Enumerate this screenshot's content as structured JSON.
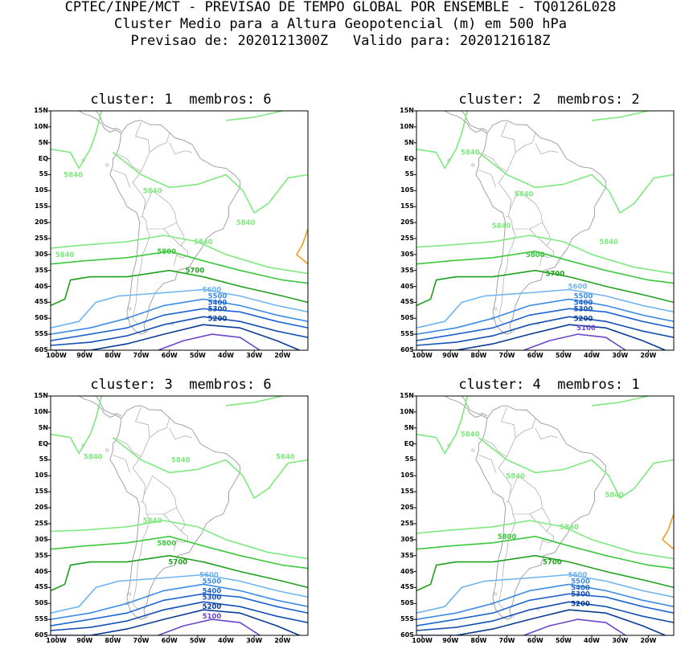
{
  "header": {
    "line1": "CPTEC/INPE/MCT - PREVISAO DE TEMPO GLOBAL POR ENSEMBLE - TQ0126L028",
    "line2": "Cluster Medio para a Altura Geopotencial (m) em 500 hPa",
    "line3": "Previsao de: 2020121300Z   Valido para: 2020121618Z"
  },
  "lat_ticks": [
    "15N",
    "10N",
    "5N",
    "EQ",
    "5S",
    "10S",
    "15S",
    "20S",
    "25S",
    "30S",
    "35S",
    "40S",
    "45S",
    "50S",
    "55S",
    "60S"
  ],
  "lon_ticks": [
    "100W",
    "90W",
    "80W",
    "70W",
    "60W",
    "50W",
    "40W",
    "30W",
    "20W"
  ],
  "colors": {
    "c5840": "#7fe87f",
    "c5800": "#3cc83c",
    "c5700": "#1ea01e",
    "c5600": "#6eb4f0",
    "c5500": "#3c8ce6",
    "c5400": "#1e64d2",
    "c5300": "#1450b4",
    "c5200": "#0a3c96",
    "c5100": "#6a46c8",
    "c5900": "#f0a01e",
    "coast": "#999999"
  },
  "panels": [
    {
      "title": "cluster: 1  membros: 6",
      "labels": [
        {
          "text": "5840",
          "lon": -94,
          "lat": -5,
          "color": "c5840"
        },
        {
          "text": "5840",
          "lon": -66,
          "lat": -10,
          "color": "c5840"
        },
        {
          "text": "5840",
          "lon": -33,
          "lat": -20,
          "color": "c5840"
        },
        {
          "text": "5840",
          "lon": -97,
          "lat": -30,
          "color": "c5840"
        },
        {
          "text": "5840",
          "lon": -48,
          "lat": -26,
          "color": "c5840"
        },
        {
          "text": "5800",
          "lon": -61,
          "lat": -29,
          "color": "c5800"
        },
        {
          "text": "5700",
          "lon": -51,
          "lat": -35,
          "color": "c5700"
        },
        {
          "text": "5600",
          "lon": -45,
          "lat": -41,
          "color": "c5600"
        },
        {
          "text": "5500",
          "lon": -43,
          "lat": -43,
          "color": "c5500"
        },
        {
          "text": "5400",
          "lon": -43,
          "lat": -45,
          "color": "c5400"
        },
        {
          "text": "5300",
          "lon": -43,
          "lat": -47,
          "color": "c5300"
        },
        {
          "text": "5200",
          "lon": -43,
          "lat": -50,
          "color": "c5200"
        }
      ]
    },
    {
      "title": "cluster: 2  membros: 2",
      "labels": [
        {
          "text": "5840",
          "lon": -83,
          "lat": 2,
          "color": "c5840"
        },
        {
          "text": "5840",
          "lon": -64,
          "lat": -11,
          "color": "c5840"
        },
        {
          "text": "5840",
          "lon": -72,
          "lat": -21,
          "color": "c5840"
        },
        {
          "text": "5840",
          "lon": -34,
          "lat": -26,
          "color": "c5840"
        },
        {
          "text": "5800",
          "lon": -60,
          "lat": -30,
          "color": "c5800"
        },
        {
          "text": "5700",
          "lon": -53,
          "lat": -36,
          "color": "c5700"
        },
        {
          "text": "5600",
          "lon": -45,
          "lat": -40,
          "color": "c5600"
        },
        {
          "text": "5500",
          "lon": -43,
          "lat": -43,
          "color": "c5500"
        },
        {
          "text": "5400",
          "lon": -43,
          "lat": -45,
          "color": "c5400"
        },
        {
          "text": "5300",
          "lon": -43,
          "lat": -47,
          "color": "c5300"
        },
        {
          "text": "5200",
          "lon": -43,
          "lat": -50,
          "color": "c5200"
        },
        {
          "text": "5100",
          "lon": -42,
          "lat": -53,
          "color": "c5100"
        }
      ]
    },
    {
      "title": "cluster: 3  membros: 6",
      "labels": [
        {
          "text": "5840",
          "lon": -87,
          "lat": -4,
          "color": "c5840"
        },
        {
          "text": "5840",
          "lon": -56,
          "lat": -5,
          "color": "c5840"
        },
        {
          "text": "5840",
          "lon": -19,
          "lat": -4,
          "color": "c5840"
        },
        {
          "text": "5840",
          "lon": -66,
          "lat": -24,
          "color": "c5840"
        },
        {
          "text": "5800",
          "lon": -61,
          "lat": -31,
          "color": "c5800"
        },
        {
          "text": "5700",
          "lon": -57,
          "lat": -37,
          "color": "c5700"
        },
        {
          "text": "5600",
          "lon": -46,
          "lat": -41,
          "color": "c5600"
        },
        {
          "text": "5500",
          "lon": -45,
          "lat": -43,
          "color": "c5500"
        },
        {
          "text": "5400",
          "lon": -45,
          "lat": -46,
          "color": "c5400"
        },
        {
          "text": "5300",
          "lon": -45,
          "lat": -48,
          "color": "c5300"
        },
        {
          "text": "5200",
          "lon": -45,
          "lat": -51,
          "color": "c5200"
        },
        {
          "text": "5100",
          "lon": -45,
          "lat": -54,
          "color": "c5100"
        }
      ]
    },
    {
      "title": "cluster: 4  membros: 1",
      "labels": [
        {
          "text": "5840",
          "lon": -83,
          "lat": 3,
          "color": "c5840"
        },
        {
          "text": "5840",
          "lon": -67,
          "lat": -10,
          "color": "c5840"
        },
        {
          "text": "5840",
          "lon": -32,
          "lat": -16,
          "color": "c5840"
        },
        {
          "text": "5840",
          "lon": -48,
          "lat": -26,
          "color": "c5840"
        },
        {
          "text": "5800",
          "lon": -70,
          "lat": -29,
          "color": "c5800"
        },
        {
          "text": "5700",
          "lon": -54,
          "lat": -37,
          "color": "c5700"
        },
        {
          "text": "5600",
          "lon": -45,
          "lat": -41,
          "color": "c5600"
        },
        {
          "text": "5500",
          "lon": -44,
          "lat": -43,
          "color": "c5500"
        },
        {
          "text": "5400",
          "lon": -44,
          "lat": -45,
          "color": "c5400"
        },
        {
          "text": "5300",
          "lon": -44,
          "lat": -47,
          "color": "c5300"
        },
        {
          "text": "5200",
          "lon": -44,
          "lat": -50,
          "color": "c5200"
        }
      ]
    }
  ]
}
